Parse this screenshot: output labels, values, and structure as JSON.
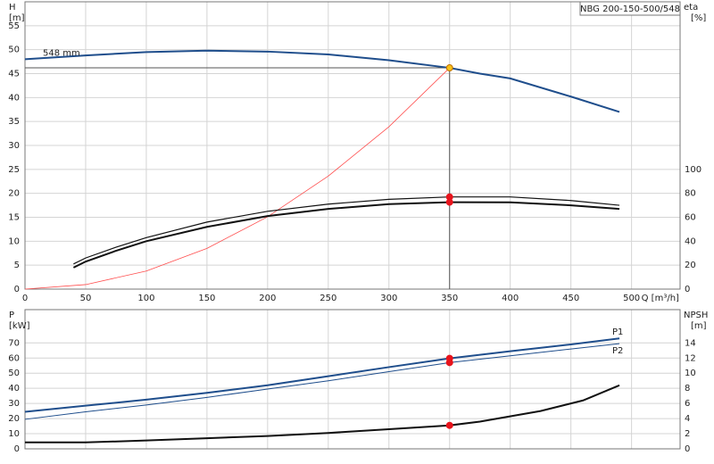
{
  "chart_data": [
    {
      "type": "line",
      "title": "NBG 200-150-500/548",
      "xlabel": "Q [m³/h]",
      "ylabel": "H",
      "ylabel_unit": "[m]",
      "y2label": "eta",
      "y2label_unit": "[%]",
      "xlim": [
        0,
        540
      ],
      "xticks": [
        0,
        50,
        100,
        150,
        200,
        250,
        300,
        350,
        400,
        450,
        500
      ],
      "ylim": [
        0,
        60
      ],
      "yticks": [
        0,
        5,
        10,
        15,
        20,
        25,
        30,
        35,
        40,
        45,
        50,
        55
      ],
      "y2lim": [
        0,
        240
      ],
      "y2ticks": [
        0,
        20,
        40,
        60,
        80,
        100
      ],
      "grid": true,
      "show_xtick_labels": true,
      "series": [
        {
          "name": "548 mm",
          "color": "#1f4e8c",
          "width": 2,
          "axis": "y",
          "x": [
            0,
            50,
            100,
            150,
            200,
            250,
            300,
            350,
            375,
            400,
            450,
            490
          ],
          "values": [
            48,
            48.8,
            49.5,
            49.8,
            49.6,
            49,
            47.8,
            46.2,
            45,
            44,
            40.2,
            37
          ]
        },
        {
          "color": "#ff4d4d",
          "width": 0.8,
          "axis": "y",
          "x": [
            0,
            50,
            100,
            150,
            200,
            250,
            300,
            350
          ],
          "values": [
            0,
            0.94,
            3.77,
            8.5,
            15.1,
            23.6,
            33.9,
            46.2
          ]
        },
        {
          "color": "#111111",
          "width": 1.2,
          "axis": "y2",
          "x": [
            40,
            50,
            75,
            100,
            150,
            200,
            250,
            300,
            350,
            400,
            450,
            490
          ],
          "values": [
            21,
            26,
            35,
            43,
            56,
            65,
            71,
            75,
            77,
            77,
            74,
            70
          ]
        },
        {
          "color": "#111111",
          "width": 2,
          "axis": "y2",
          "x": [
            40,
            50,
            75,
            100,
            150,
            200,
            250,
            300,
            350,
            400,
            450,
            490
          ],
          "values": [
            18,
            23,
            32,
            40,
            52,
            61,
            67,
            71,
            72.6,
            72.5,
            70,
            67
          ]
        }
      ],
      "points": [
        {
          "x": 350,
          "y": 46.2,
          "color": "#f7c21a",
          "crosshair": true
        },
        {
          "x": 350,
          "y": 77,
          "color": "#e8141c",
          "axis": "y2"
        },
        {
          "x": 350,
          "y": 72.6,
          "color": "#e8141c",
          "axis": "y2"
        }
      ]
    },
    {
      "type": "line",
      "ylabel": "P",
      "ylabel_unit": "[kW]",
      "y2label": "NPSH",
      "y2label_unit": "[m]",
      "xlim": [
        0,
        540
      ],
      "xticks": [
        0,
        50,
        100,
        150,
        200,
        250,
        300,
        350,
        400,
        450,
        500
      ],
      "ylim": [
        0,
        92
      ],
      "yticks": [
        0,
        10,
        20,
        30,
        40,
        50,
        60,
        70
      ],
      "y2lim": [
        0,
        18.4
      ],
      "y2ticks": [
        0,
        2,
        4,
        6,
        8,
        10,
        12,
        14
      ],
      "grid": true,
      "show_xtick_labels": false,
      "series": [
        {
          "name": "P1",
          "color": "#1f4e8c",
          "width": 2,
          "axis": "y",
          "x": [
            0,
            50,
            100,
            150,
            200,
            250,
            300,
            350,
            400,
            450,
            490
          ],
          "values": [
            24.5,
            28.5,
            32.5,
            37,
            42,
            48,
            54,
            59.8,
            64.5,
            69,
            73
          ]
        },
        {
          "name": "P2",
          "color": "#1f4e8c",
          "width": 1,
          "axis": "y",
          "x": [
            0,
            50,
            100,
            150,
            200,
            250,
            300,
            350,
            400,
            450,
            490
          ],
          "values": [
            19.5,
            24.5,
            29,
            34,
            39.5,
            45,
            51,
            57,
            61.5,
            66,
            69.5
          ]
        },
        {
          "color": "#111111",
          "width": 2,
          "axis": "y2",
          "x": [
            0,
            50,
            100,
            150,
            200,
            250,
            300,
            350,
            375,
            425,
            460,
            490
          ],
          "values": [
            0.85,
            0.85,
            1.1,
            1.4,
            1.7,
            2.1,
            2.6,
            3.1,
            3.6,
            5.0,
            6.4,
            8.4
          ]
        }
      ],
      "points": [
        {
          "x": 350,
          "y": 59.8,
          "color": "#e8141c"
        },
        {
          "x": 350,
          "y": 57,
          "color": "#e8141c"
        },
        {
          "x": 350,
          "y": 3.1,
          "color": "#e8141c",
          "axis": "y2"
        }
      ]
    }
  ]
}
